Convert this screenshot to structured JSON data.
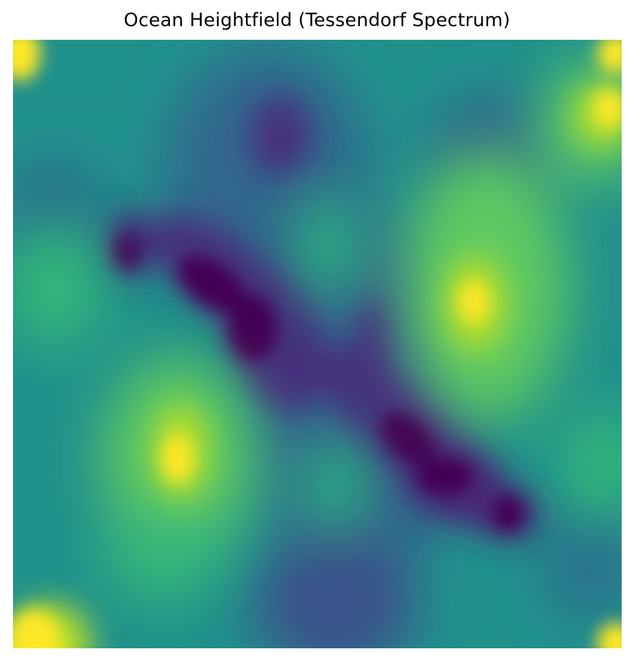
{
  "chart_data": {
    "type": "heatmap",
    "title": "Ocean Heightfield (Tessendorf Spectrum)",
    "xlabel": "",
    "ylabel": "",
    "axes_visible": false,
    "colorbar": false,
    "colormap": "viridis",
    "colormap_stops": [
      "#440154",
      "#3b528b",
      "#21918c",
      "#5ec962",
      "#fde725"
    ],
    "value_range": [
      0,
      1
    ],
    "grid": false,
    "features": [
      {
        "kind": "peak",
        "x": 0.02,
        "y": 0.02,
        "value": 1.0
      },
      {
        "kind": "peak",
        "x": 0.98,
        "y": 0.02,
        "value": 1.0
      },
      {
        "kind": "peak",
        "x": 0.02,
        "y": 0.98,
        "value": 1.0
      },
      {
        "kind": "peak",
        "x": 0.98,
        "y": 0.98,
        "value": 1.0
      },
      {
        "kind": "peak",
        "x": 0.94,
        "y": 0.08,
        "value": 0.95
      },
      {
        "kind": "peak",
        "x": 0.73,
        "y": 0.37,
        "value": 1.0
      },
      {
        "kind": "peak",
        "x": 0.25,
        "y": 0.62,
        "value": 1.0
      },
      {
        "kind": "peak",
        "x": 0.06,
        "y": 0.92,
        "value": 1.0
      },
      {
        "kind": "trough",
        "x": 0.3,
        "y": 0.35,
        "value": 0.0
      },
      {
        "kind": "trough",
        "x": 0.37,
        "y": 0.43,
        "value": 0.0
      },
      {
        "kind": "trough",
        "x": 0.19,
        "y": 0.29,
        "value": 0.05
      },
      {
        "kind": "trough",
        "x": 0.63,
        "y": 0.66,
        "value": 0.0
      },
      {
        "kind": "trough",
        "x": 0.56,
        "y": 0.57,
        "value": 0.05
      },
      {
        "kind": "trough",
        "x": 0.81,
        "y": 0.71,
        "value": 0.05
      }
    ]
  }
}
